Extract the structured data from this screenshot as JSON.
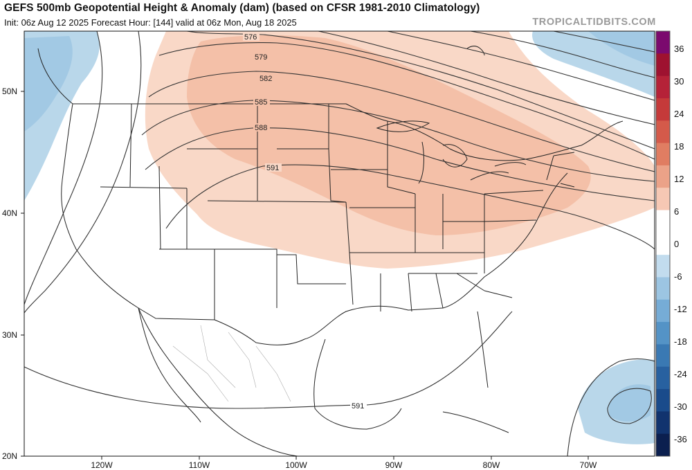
{
  "header": {
    "title": "GEFS 500mb Geopotential Height & Anomaly (dam) (based on CFSR 1981-2010 Climatology)",
    "subtitle": "Init: 06z Aug 12 2025   Forecast Hour: [144]   valid at 06z Mon, Aug 18 2025",
    "brand": "TROPICALTIDBITS.COM"
  },
  "axes": {
    "lat_labels": [
      "50N",
      "40N",
      "30N",
      "20N"
    ],
    "lon_labels": [
      "120W",
      "110W",
      "100W",
      "90W",
      "80W",
      "70W"
    ]
  },
  "contours": {
    "labels": [
      "576",
      "579",
      "582",
      "585",
      "588",
      "591",
      "591"
    ]
  },
  "colorbar": {
    "ticks": [
      "36",
      "30",
      "24",
      "18",
      "12",
      "6",
      "0",
      "-6",
      "-12",
      "-18",
      "-24",
      "-30",
      "-36"
    ],
    "colors": [
      "#7b0a6e",
      "#9e1230",
      "#b52238",
      "#c53a3a",
      "#d45a4a",
      "#e07d62",
      "#eba288",
      "#f6c8b4",
      "#ffffff",
      "#ffffff",
      "#c2dcee",
      "#9cc5e2",
      "#76acd6",
      "#5493c6",
      "#3a79b3",
      "#2861a0",
      "#1a4b8b",
      "#11336e",
      "#0b1f4f"
    ]
  },
  "anomaly_colors": {
    "positive_light": "#f9d8c7",
    "positive_mid": "#f4b9a0",
    "negative_light": "#b6d6ea",
    "negative_mid": "#9cc5e2"
  }
}
